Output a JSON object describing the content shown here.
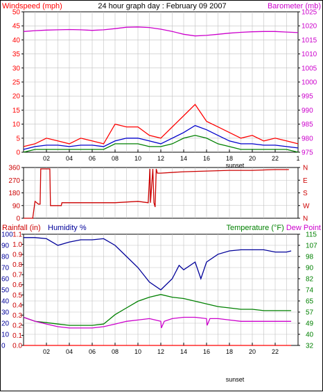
{
  "title": "24 hour graph day : February 09 2007",
  "colors": {
    "wind": "#ff0000",
    "wind_avg": "#0000cc",
    "gust": "#008000",
    "baro": "#cc00cc",
    "dir": "#cc0000",
    "hum": "#000099",
    "temp": "#008000",
    "dew": "#cc00cc",
    "rain": "#ff0000",
    "grid": "#c0c0c0",
    "axis": "#000000",
    "rain_label": "#cc0000",
    "hum_label": "#000099",
    "temp_label": "#008000",
    "dew_label": "#cc00cc"
  },
  "x_ticks": [
    "02",
    "04",
    "06",
    "08",
    "10",
    "12",
    "14",
    "16",
    "18",
    "20",
    "22"
  ],
  "x_ticks_top": [
    "02",
    "04",
    "06",
    "08",
    "10",
    "12",
    "14",
    "16",
    "18",
    "20",
    "22",
    "1"
  ],
  "sunset_label": "sunset",
  "chart_data": [
    {
      "type": "line",
      "title": "24 hour graph day : February 09 2007",
      "ylabel": "Windspeed (mph)",
      "y2label": "Barometer (mb)",
      "ylim": [
        0,
        50
      ],
      "y2lim": [
        975,
        1025
      ],
      "y_ticks": [
        "0",
        "5",
        "10",
        "15",
        "20",
        "25",
        "30",
        "35",
        "40",
        "45",
        "50"
      ],
      "y2_ticks": [
        "975",
        "980",
        "985",
        "990",
        "995",
        "1000",
        "1005",
        "1010",
        "1015",
        "1020",
        "1025"
      ],
      "series": [
        {
          "color_key": "baro",
          "axis": "right",
          "x": [
            0,
            1,
            2,
            3,
            4,
            5,
            6,
            7,
            8,
            9,
            10,
            11,
            12,
            13,
            14,
            15,
            16,
            17,
            18,
            19,
            20,
            21,
            22,
            23,
            24
          ],
          "y": [
            1018,
            1018.3,
            1018.5,
            1018.6,
            1018.7,
            1018.6,
            1018.4,
            1018.6,
            1019,
            1019.5,
            1019.6,
            1019.4,
            1018.8,
            1018,
            1017,
            1016.4,
            1016.6,
            1017,
            1017.4,
            1017.7,
            1017.9,
            1018,
            1018,
            1017.8,
            1017.6
          ]
        },
        {
          "color_key": "wind",
          "axis": "left",
          "x": [
            0,
            1,
            2,
            3,
            4,
            5,
            6,
            7,
            8,
            9,
            10,
            11,
            12,
            13,
            14,
            15,
            16,
            17,
            18,
            19,
            20,
            21,
            22,
            23,
            24
          ],
          "y": [
            2,
            3,
            5,
            4,
            3,
            5,
            4,
            3,
            10,
            9,
            9,
            6,
            5,
            9,
            13,
            17,
            11,
            9,
            7,
            5,
            6,
            4,
            5,
            4,
            3
          ]
        },
        {
          "color_key": "wind_avg",
          "axis": "left",
          "x": [
            0,
            1,
            2,
            3,
            4,
            5,
            6,
            7,
            8,
            9,
            10,
            11,
            12,
            13,
            14,
            15,
            16,
            17,
            18,
            19,
            20,
            21,
            22,
            23,
            24
          ],
          "y": [
            1,
            2,
            2.5,
            2.5,
            2,
            2.5,
            2.5,
            2,
            4,
            5,
            5,
            4,
            3,
            5,
            7,
            9.5,
            8,
            6,
            4,
            3,
            3,
            2.5,
            2.5,
            2,
            1.5
          ]
        },
        {
          "color_key": "gust",
          "axis": "left",
          "x": [
            0,
            1,
            2,
            3,
            4,
            5,
            6,
            7,
            8,
            9,
            10,
            11,
            12,
            13,
            14,
            15,
            16,
            17,
            18,
            19,
            20,
            21,
            22,
            23,
            24
          ],
          "y": [
            0,
            1,
            1,
            1,
            1,
            1,
            1,
            1,
            3,
            3,
            3,
            2,
            2,
            3,
            5,
            6,
            5,
            3,
            2,
            1,
            1,
            1,
            1,
            1,
            0
          ]
        }
      ]
    },
    {
      "type": "line",
      "ylabel": "Wind direction",
      "ylim": [
        0,
        360
      ],
      "y_ticks": [
        "0",
        "90",
        "180",
        "270",
        "360"
      ],
      "y2_ticks": [
        "N",
        "W",
        "S",
        "E",
        "N"
      ],
      "series": [
        {
          "color_key": "dir",
          "x": [
            0,
            0.8,
            1.0,
            1.3,
            1.45,
            1.5,
            2.3,
            2.35,
            3.3,
            3.35,
            4,
            6,
            8,
            10,
            10.9,
            11.05,
            11.1,
            11.3,
            11.4,
            11.5,
            11.6,
            11.7,
            12,
            14,
            16,
            18,
            20,
            22,
            23.2
          ],
          "y": [
            0,
            0,
            120,
            100,
            100,
            350,
            350,
            90,
            90,
            110,
            110,
            110,
            110,
            120,
            110,
            350,
            110,
            350,
            110,
            80,
            350,
            320,
            320,
            330,
            335,
            340,
            340,
            345,
            345
          ]
        }
      ]
    },
    {
      "type": "line",
      "ylabel": "Rainfall (in)",
      "y2label": "Temperature (°F) Dew Point",
      "ylabel_humidity": "Humidity %",
      "ylim_rain": [
        0.0,
        1.1
      ],
      "ylim_humidity": [
        0,
        100
      ],
      "y2lim": [
        32,
        115
      ],
      "y_ticks_rain": [
        "0.0",
        "0.1",
        "0.2",
        "0.3",
        "0.4",
        "0.5",
        "0.6",
        "0.7",
        "0.8",
        "0.9",
        "1.0",
        "1.1"
      ],
      "y_ticks_humidity": [
        "0",
        "10",
        "20",
        "30",
        "40",
        "50",
        "60",
        "70",
        "80",
        "90",
        "100"
      ],
      "y2_ticks": [
        "32",
        "40",
        "49",
        "57",
        "65",
        "74",
        "82",
        "90",
        "98",
        "107",
        "115"
      ],
      "series": [
        {
          "color_key": "hum",
          "axis": "humidity",
          "x": [
            0,
            1,
            2,
            3,
            4,
            5,
            6,
            7,
            8,
            9,
            10,
            11,
            12,
            13,
            13.6,
            14,
            15,
            15.5,
            16,
            17,
            18,
            19,
            20,
            21,
            22,
            23,
            23.4
          ],
          "y": [
            97,
            97,
            96,
            90,
            93,
            95,
            95,
            96,
            90,
            80,
            70,
            57,
            50,
            60,
            72,
            68,
            75,
            60,
            75,
            82,
            85,
            86,
            86,
            86,
            84,
            84,
            85
          ]
        },
        {
          "color_key": "temp",
          "axis": "right",
          "x": [
            0,
            1,
            2,
            3,
            4,
            5,
            6,
            7,
            8,
            9,
            10,
            11,
            12,
            13,
            14,
            15,
            16,
            17,
            18,
            19,
            20,
            21,
            22,
            23,
            23.4
          ],
          "y": [
            53,
            50,
            49,
            48,
            47,
            47,
            47,
            48,
            55,
            60,
            65,
            68,
            70,
            68,
            67,
            65,
            63,
            61,
            60,
            59,
            59,
            58,
            58,
            58,
            58
          ]
        },
        {
          "color_key": "dew",
          "axis": "right",
          "x": [
            0,
            1,
            2,
            3,
            4,
            5,
            6,
            7,
            8,
            9,
            10,
            11,
            12,
            12.05,
            12.3,
            13,
            14,
            15,
            16,
            16.05,
            16.3,
            17,
            18,
            19,
            20,
            21,
            22,
            23,
            23.4
          ],
          "y": [
            53,
            50,
            48,
            46,
            45,
            45,
            45,
            46,
            48,
            50,
            51,
            52,
            50,
            45,
            50,
            52,
            53,
            53,
            52,
            47,
            52,
            52,
            51,
            50,
            50,
            50,
            50,
            50,
            50
          ]
        },
        {
          "color_key": "rain",
          "axis": "rain",
          "x": [
            0,
            23.4
          ],
          "y": [
            0,
            0
          ]
        }
      ]
    }
  ]
}
